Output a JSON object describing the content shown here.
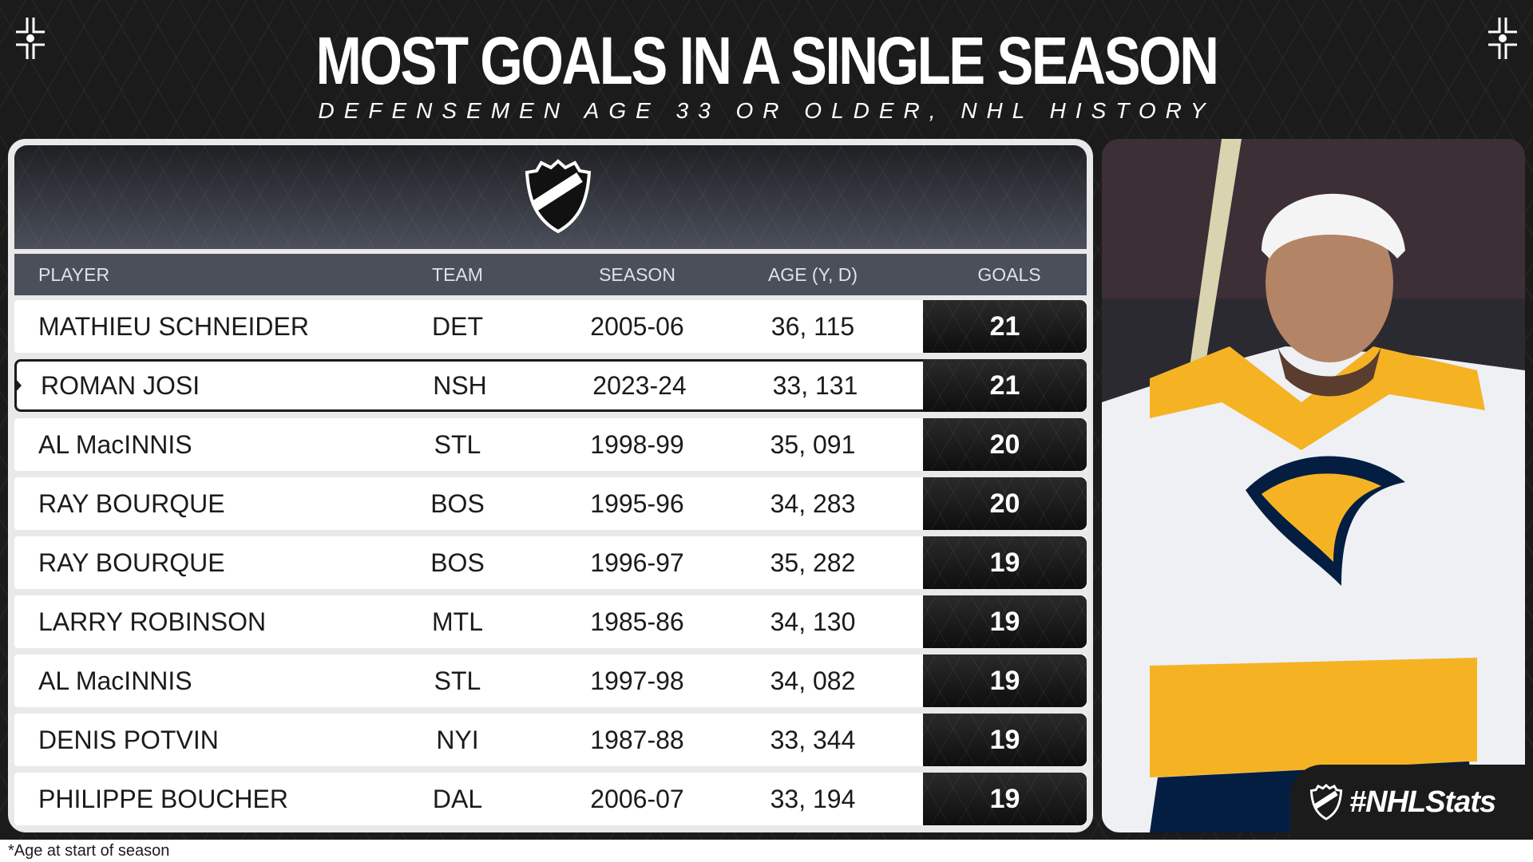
{
  "header": {
    "title": "MOST GOALS IN A SINGLE SEASON",
    "subtitle": "DEFENSEMEN AGE 33 OR OLDER, NHL HISTORY"
  },
  "logo_text": "NHL",
  "table": {
    "columns": [
      "PLAYER",
      "TEAM",
      "SEASON",
      "AGE (Y, D)",
      "GOALS"
    ],
    "rows": [
      {
        "player": "MATHIEU SCHNEIDER",
        "team": "DET",
        "season": "2005-06",
        "age": "36, 115",
        "goals": "21"
      },
      {
        "player": "ROMAN JOSI",
        "team": "NSH",
        "season": "2023-24",
        "age": "33, 131",
        "goals": "21",
        "highlighted": true
      },
      {
        "player": "AL MacINNIS",
        "team": "STL",
        "season": "1998-99",
        "age": "35, 091",
        "goals": "20"
      },
      {
        "player": "RAY BOURQUE",
        "team": "BOS",
        "season": "1995-96",
        "age": "34, 283",
        "goals": "20"
      },
      {
        "player": "RAY BOURQUE",
        "team": "BOS",
        "season": "1996-97",
        "age": "35, 282",
        "goals": "19"
      },
      {
        "player": "LARRY ROBINSON",
        "team": "MTL",
        "season": "1985-86",
        "age": "34, 130",
        "goals": "19"
      },
      {
        "player": "AL MacINNIS",
        "team": "STL",
        "season": "1997-98",
        "age": "34, 082",
        "goals": "19"
      },
      {
        "player": "DENIS POTVIN",
        "team": "NYI",
        "season": "1987-88",
        "age": "33, 344",
        "goals": "19"
      },
      {
        "player": "PHILIPPE BOUCHER",
        "team": "DAL",
        "season": "2006-07",
        "age": "33, 194",
        "goals": "19"
      }
    ]
  },
  "badge": {
    "text": "#NHLStats"
  },
  "footnote": "*Age at start of season",
  "colors": {
    "background": "#1b1b1b",
    "header_bar": "#4a4f5a",
    "predators_gold": "#f5b324",
    "predators_navy": "#041e42"
  }
}
